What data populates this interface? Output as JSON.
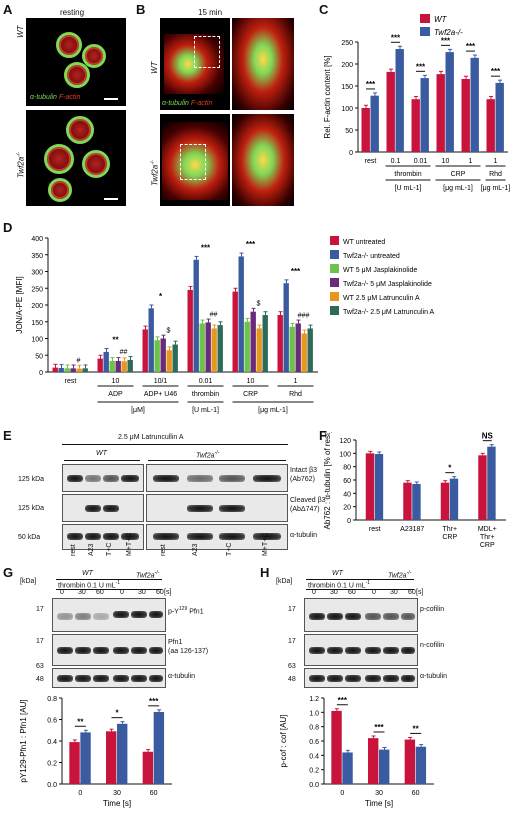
{
  "panels": {
    "A": "A",
    "B": "B",
    "C": "C",
    "D": "D",
    "E": "E",
    "F": "F",
    "G": "G",
    "H": "H"
  },
  "panelA": {
    "title": "resting",
    "wt": "WT",
    "ko": "Twf2a",
    "ko_sup": "-/-",
    "stain_green": "α-tubulin",
    "stain_red": "F-actin"
  },
  "panelB": {
    "title": "15 min",
    "wt": "WT",
    "ko": "Twf2a",
    "ko_sup": "-/-",
    "stain_green": "α-tubulin",
    "stain_red": "F-actin"
  },
  "panelE": {
    "treatment": "2.5 μM Latruncullin A",
    "wt": "WT",
    "ko": "Twf2a",
    "ko_sup": "-/-",
    "kda1": "125 kDa",
    "kda2": "125 kDa",
    "kda3": "50 kDa",
    "blot1": "Intact β3",
    "blot1b": "(Ab762)",
    "blot2": "Cleaved β3",
    "blot2b": "(AbΔ747)",
    "blot3": "α-tubulin",
    "lanes": [
      "rest",
      "A23",
      "T+C",
      "M+T+C",
      "rest",
      "A23",
      "T+C",
      "M+T+C"
    ]
  },
  "panelG": {
    "wt": "WT",
    "ko": "Twf2a",
    "ko_sup": "-/-",
    "thrombin": "thrombin 0.1 U mL",
    "thrombin_sup": "-1",
    "kda_label": "[kDa]",
    "s_label": "[s]",
    "times": [
      "0",
      "30",
      "60",
      "0",
      "30",
      "60"
    ],
    "kdas": [
      "17",
      "17",
      "63",
      "48"
    ],
    "blot1": "p-Y",
    "blot1_sup": "129",
    "blot1b": " Pfn1",
    "blot2": "Pfn1",
    "blot2b": "(aa 126-137)",
    "blot3": "α-tubulin"
  },
  "panelH": {
    "wt": "WT",
    "ko": "Twf2a",
    "ko_sup": "-/-",
    "thrombin": "thrombin 0.1 U mL",
    "thrombin_sup": "-1",
    "kda_label": "[kDa]",
    "s_label": "[s]",
    "times": [
      "0",
      "30",
      "60",
      "0",
      "30",
      "60"
    ],
    "kdas": [
      "17",
      "17",
      "63",
      "48"
    ],
    "blot1": "p-cofilin",
    "blot2": "n-cofilin",
    "blot3": "α-tubulin"
  },
  "colors": {
    "wt": "#c8143c",
    "ko": "#3a5ba0",
    "green": "#6cc24a",
    "purple": "#6a2c7a",
    "orange": "#e8971e",
    "teal": "#2e6a5a"
  },
  "chart_data": [
    {
      "id": "C",
      "type": "bar",
      "categories": [
        "rest",
        "0.1",
        "0.01",
        "10",
        "1",
        "1"
      ],
      "group_labels": [
        "thrombin",
        "CRP",
        "Rhd"
      ],
      "unit_labels": [
        "[U mL-1]",
        "[μg mL-1]",
        "[μg mL-1]"
      ],
      "ylabel": "Rel. F-actin content [%]",
      "ylim": [
        0,
        250
      ],
      "yticks": [
        0,
        50,
        100,
        150,
        200,
        250
      ],
      "series": [
        {
          "name": "WT",
          "values": [
            100,
            182,
            120,
            177,
            166,
            120
          ]
        },
        {
          "name": "Twf2a-/-",
          "values": [
            128,
            234,
            168,
            227,
            214,
            157
          ]
        }
      ],
      "significance": [
        "***",
        "***",
        "***",
        "***",
        "***",
        "***"
      ]
    },
    {
      "id": "D",
      "type": "bar",
      "categories": [
        "rest",
        "10",
        "10/1",
        "0.01",
        "10",
        "1"
      ],
      "group_labels": [
        "ADP",
        "ADP+ U46",
        "thrombin",
        "CRP",
        "Rhd"
      ],
      "unit_labels": [
        "[μM]",
        "[U mL-1]",
        "[μg mL-1]"
      ],
      "ylabel": "JON/A-PE [MFI]",
      "ylim": [
        0,
        400
      ],
      "yticks": [
        0,
        50,
        100,
        150,
        200,
        250,
        300,
        350,
        400
      ],
      "series": [
        {
          "name": "WT untreated",
          "values": [
            13,
            40,
            127,
            245,
            240,
            170
          ]
        },
        {
          "name": "Twf2a-/- untreated",
          "values": [
            12,
            60,
            190,
            335,
            345,
            265
          ]
        },
        {
          "name": "WT 5 μM Jasplakinolide",
          "values": [
            11,
            33,
            95,
            145,
            150,
            135
          ]
        },
        {
          "name": "Twf2a-/- 5 μM Jasplakinolide",
          "values": [
            11,
            33,
            100,
            148,
            180,
            145
          ]
        },
        {
          "name": "WT 2.5 μM Latrunculin A",
          "values": [
            10,
            32,
            65,
            130,
            130,
            115
          ]
        },
        {
          "name": "Twf2a-/- 2.5 μM Latrunculin A",
          "values": [
            11,
            36,
            82,
            140,
            170,
            130
          ]
        }
      ],
      "significance_top": [
        "",
        "**",
        "*",
        "***",
        "***",
        "***"
      ],
      "annotations": [
        "#",
        "##",
        "$",
        "##",
        "$",
        "###"
      ]
    },
    {
      "id": "F",
      "type": "bar",
      "categories": [
        "rest",
        "A23187",
        "Thr+ CRP",
        "MDL+ Thr+ CRP"
      ],
      "ylabel": "Ab762 : α-tubulin [% of rest]",
      "ylim": [
        0,
        120
      ],
      "yticks": [
        0,
        20,
        40,
        60,
        80,
        100,
        120
      ],
      "series": [
        {
          "name": "WT",
          "values": [
            100,
            56,
            56,
            97
          ]
        },
        {
          "name": "Twf2a-/-",
          "values": [
            99,
            54,
            62,
            110
          ]
        }
      ],
      "significance": [
        "",
        "",
        "*",
        "NS"
      ]
    },
    {
      "id": "G",
      "type": "bar",
      "categories": [
        "0",
        "30",
        "60"
      ],
      "xlabel": "Time [s]",
      "ylabel": "pY129-Pfn1 : Pfn1 [AU]",
      "ylim": [
        0,
        0.8
      ],
      "yticks": [
        0,
        0.2,
        0.4,
        0.6,
        0.8
      ],
      "series": [
        {
          "name": "WT",
          "values": [
            0.39,
            0.49,
            0.3
          ]
        },
        {
          "name": "Twf2a-/-",
          "values": [
            0.48,
            0.56,
            0.67
          ]
        }
      ],
      "significance": [
        "**",
        "*",
        "***"
      ]
    },
    {
      "id": "H",
      "type": "bar",
      "categories": [
        "0",
        "30",
        "60"
      ],
      "xlabel": "Time [s]",
      "ylabel": "p-cof : cof [AU]",
      "ylim": [
        0,
        1.2
      ],
      "yticks": [
        0,
        0.2,
        0.4,
        0.6,
        0.8,
        1.0,
        1.2
      ],
      "series": [
        {
          "name": "WT",
          "values": [
            1.02,
            0.64,
            0.62
          ]
        },
        {
          "name": "Twf2a-/-",
          "values": [
            0.44,
            0.48,
            0.52
          ]
        }
      ],
      "significance": [
        "***",
        "***",
        "**"
      ]
    }
  ]
}
